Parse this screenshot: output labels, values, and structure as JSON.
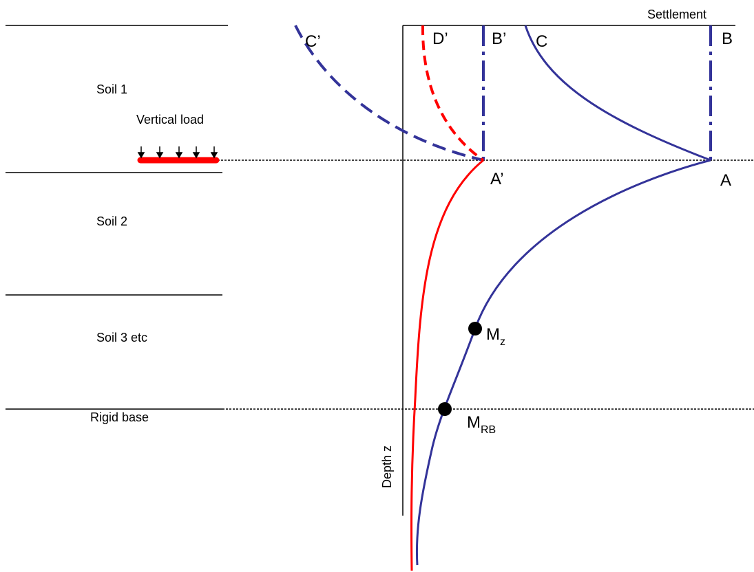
{
  "labels": {
    "soil1": "Soil 1",
    "soil2": "Soil 2",
    "soil3": "Soil 3 etc",
    "rigid_base": "Rigid base",
    "vertical_load": "Vertical load",
    "settlement": "Settlement",
    "depth": "Depth  z"
  },
  "points": {
    "A": "A",
    "A_prime": "A’",
    "B": "B",
    "B_prime": "B’",
    "C": "C",
    "C_prime": "C’",
    "D_prime": "D’",
    "M_z_main": "M",
    "M_z_sub": "z",
    "M_RB_main": "M",
    "M_RB_sub": "RB"
  },
  "colors": {
    "blue_curve": "#333399",
    "red_curve": "#ff0000",
    "axis": "#000000"
  }
}
